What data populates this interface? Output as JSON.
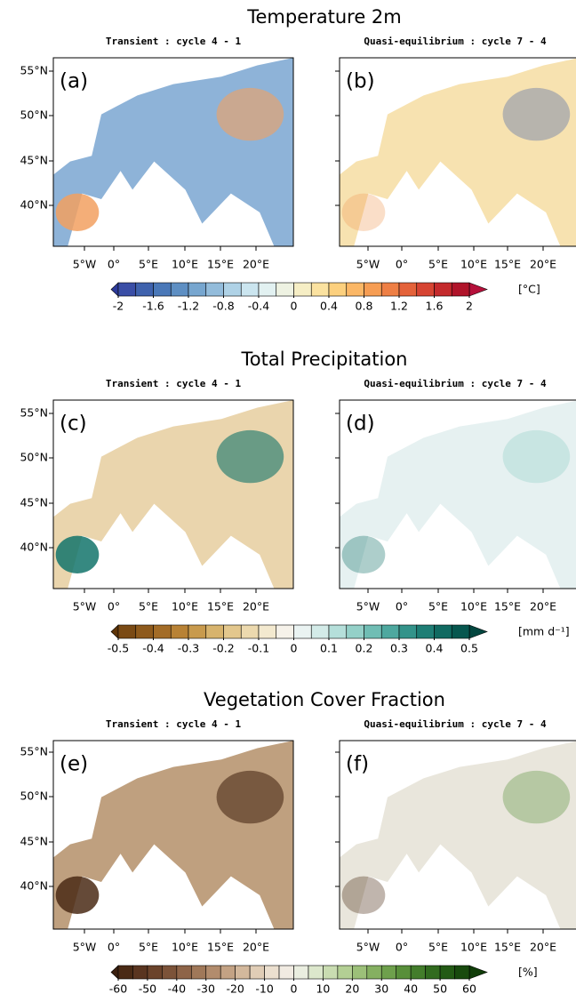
{
  "lat_labels": [
    "55°N",
    "50°N",
    "45°N",
    "40°N"
  ],
  "lon_labels": [
    "5°W",
    "0°",
    "5°E",
    "10°E",
    "15°E",
    "20°E"
  ],
  "sections": [
    {
      "title": "Temperature 2m",
      "panels": [
        {
          "subtitle": "Transient : cycle 4 - 1",
          "label": "(a)"
        },
        {
          "subtitle": "Quasi-equilibrium : cycle 7 - 4",
          "label": "(b)"
        }
      ],
      "colorbar": {
        "unit": "[°C]",
        "lim": [
          -2,
          2
        ],
        "ticks": [
          -2,
          -1.6,
          -1.2,
          -0.8,
          -0.4,
          0,
          0.4,
          0.8,
          1.2,
          1.6,
          2
        ],
        "colors": [
          "#3a4ea6",
          "#3f62ad",
          "#4a78b8",
          "#5e8fc3",
          "#77a6cf",
          "#93bcdb",
          "#afd2e6",
          "#cbe5ef",
          "#e2f1f1",
          "#eef2e2",
          "#f6eec5",
          "#fbe2a0",
          "#fcd07e",
          "#fbb766",
          "#f69d53",
          "#ee7f45",
          "#e4623a",
          "#d64432",
          "#c42a2c",
          "#b0142a"
        ],
        "under": "#2c3a99",
        "over": "#b5103a"
      }
    },
    {
      "title": "Total Precipitation",
      "panels": [
        {
          "subtitle": "Transient : cycle 4 - 1",
          "label": "(c)"
        },
        {
          "subtitle": "Quasi-equilibrium : cycle 7 - 4",
          "label": "(d)"
        }
      ],
      "colorbar": {
        "unit": "[mm d⁻¹]",
        "lim": [
          -0.5,
          0.5
        ],
        "ticks": [
          -0.5,
          -0.4,
          -0.3,
          -0.2,
          -0.1,
          0,
          0.1,
          0.2,
          0.3,
          0.4,
          0.5
        ],
        "colors": [
          "#7a4a14",
          "#8e5a1c",
          "#a36c27",
          "#b88235",
          "#c89a4d",
          "#d7b36d",
          "#e3c78d",
          "#ecd9ae",
          "#f3e9cf",
          "#f6f2ea",
          "#eaf3f2",
          "#d3ebe8",
          "#b5dfda",
          "#94d0c8",
          "#70bdb4",
          "#4ea89f",
          "#33938a",
          "#1e7e75",
          "#106a61",
          "#07574f"
        ],
        "under": "#5e3508",
        "over": "#03463f"
      }
    },
    {
      "title": "Vegetation Cover Fraction",
      "panels": [
        {
          "subtitle": "Transient : cycle 4 - 1",
          "label": "(e)"
        },
        {
          "subtitle": "Quasi-equilibrium : cycle 7 - 4",
          "label": "(f)"
        }
      ],
      "colorbar": {
        "unit": "[%]",
        "lim": [
          -60,
          60
        ],
        "ticks": [
          -60,
          -50,
          -40,
          -30,
          -20,
          -10,
          0,
          10,
          20,
          30,
          40,
          50,
          60
        ],
        "colors": [
          "#4a2a15",
          "#5a3520",
          "#6b432b",
          "#7c5339",
          "#8e6448",
          "#a07859",
          "#b28c6d",
          "#c3a284",
          "#d3b89c",
          "#e0cdb6",
          "#ebdfcf",
          "#f1ebe2",
          "#eaeee0",
          "#dce7cc",
          "#c9dcb1",
          "#b3cf94",
          "#9cc079",
          "#85b061",
          "#6ea04c",
          "#588f3a",
          "#437d2b",
          "#316b1f",
          "#235a15",
          "#184a0e"
        ],
        "under": "#3b2010",
        "over": "#103d08"
      }
    }
  ]
}
